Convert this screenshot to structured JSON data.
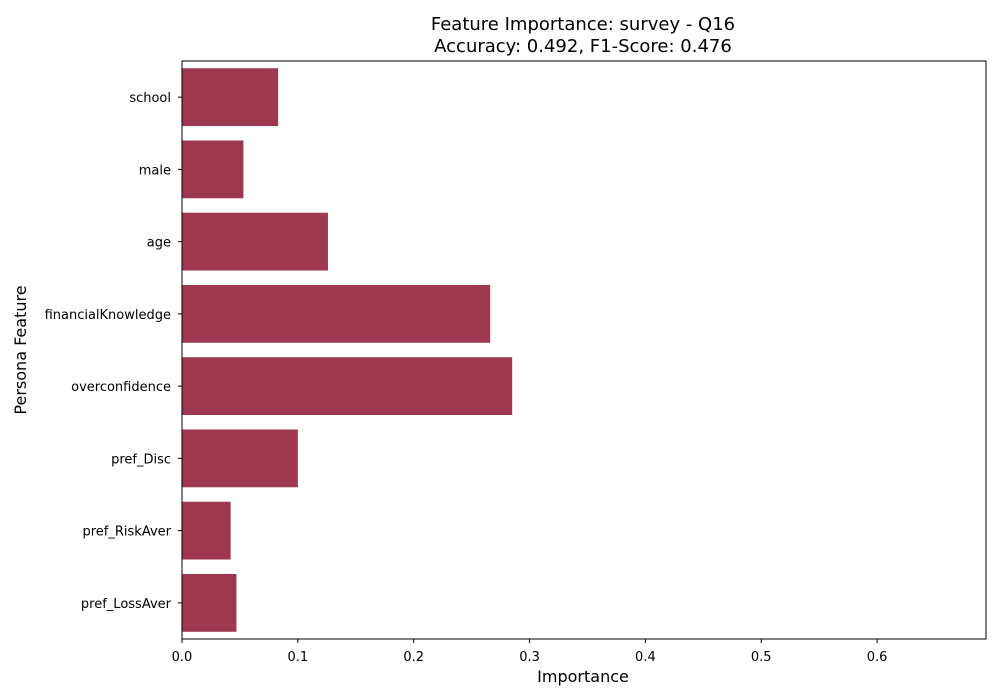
{
  "chart_data": {
    "type": "bar",
    "orientation": "horizontal",
    "title": "Feature Importance: survey - Q16",
    "subtitle": "Accuracy: 0.492, F1-Score: 0.476",
    "xlabel": "Importance",
    "ylabel": "Persona Feature",
    "categories": [
      "school",
      "male",
      "age",
      "financialKnowledge",
      "overconfidence",
      "pref_Disc",
      "pref_RiskAver",
      "pref_LossAver"
    ],
    "values": [
      0.083,
      0.053,
      0.126,
      0.266,
      0.285,
      0.1,
      0.042,
      0.047
    ],
    "xlim": [
      0,
      0.694
    ],
    "xticks": [
      "0.0",
      "0.1",
      "0.2",
      "0.3",
      "0.4",
      "0.5",
      "0.6"
    ],
    "grid": false,
    "bar_color": "#9e3750"
  }
}
